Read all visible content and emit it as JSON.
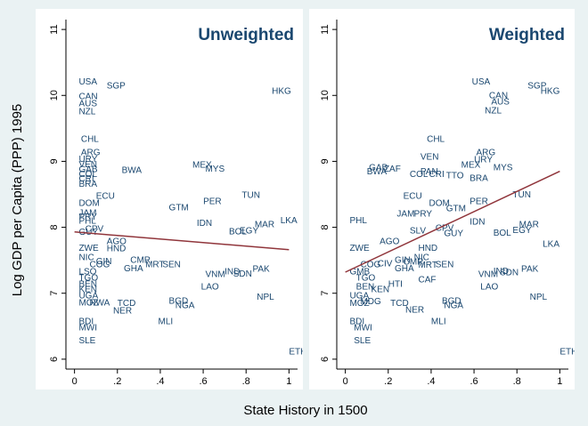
{
  "ylabel": "Log GDP per Capita (PPP) 1995",
  "xlabel": "State History in 1500",
  "chart_data": [
    {
      "type": "scatter",
      "title": "Unweighted",
      "color": "#1a476f",
      "fit_color": "#90353b",
      "xlim": [
        -0.04,
        1.04
      ],
      "ylim": [
        5.85,
        11.15
      ],
      "xticks": [
        0,
        {
          "value": 0.2,
          "label": ".2"
        },
        {
          "value": 0.4,
          "label": ".4"
        },
        {
          "value": 0.6,
          "label": ".6"
        },
        {
          "value": 0.8,
          "label": ".8"
        },
        1
      ],
      "yticks": [
        6,
        7,
        8,
        9,
        10,
        11
      ],
      "labels": [
        "USA",
        "SGP",
        "CAN",
        "AUS",
        "NZL",
        "HKG",
        "CHL",
        "ARG",
        "URY",
        "VEN",
        "GAB",
        "COL",
        "CRI",
        "BRA",
        "BWA",
        "MEX",
        "MYS",
        "ECU",
        "DOM",
        "TUN",
        "GTM",
        "PER",
        "JAM",
        "PRY",
        "PHL",
        "IDN",
        "CPV",
        "GUY",
        "BOL",
        "EGY",
        "MAR",
        "LKA",
        "ZWE",
        "AGO",
        "HND",
        "NIC",
        "GIN",
        "COG",
        "CMR",
        "GHA",
        "MRT",
        "SEN",
        "LSO",
        "TGO",
        "BEN",
        "KEN",
        "UGA",
        "VNM",
        "IND",
        "SDN",
        "PAK",
        "LAO",
        "NPL",
        "MOZ",
        "RWA",
        "TCD",
        "NER",
        "BGD",
        "NGA",
        "MLI",
        "BDI",
        "MWI",
        "ETH",
        "SLE"
      ],
      "x": [
        0.02,
        0.15,
        0.02,
        0.02,
        0.02,
        0.92,
        0.03,
        0.03,
        0.02,
        0.02,
        0.02,
        0.02,
        0.02,
        0.02,
        0.22,
        0.55,
        0.61,
        0.1,
        0.02,
        0.78,
        0.44,
        0.6,
        0.02,
        0.02,
        0.02,
        0.57,
        0.05,
        0.02,
        0.72,
        0.77,
        0.84,
        0.96,
        0.02,
        0.15,
        0.15,
        0.02,
        0.1,
        0.07,
        0.26,
        0.23,
        0.33,
        0.41,
        0.02,
        0.02,
        0.02,
        0.02,
        0.02,
        0.61,
        0.7,
        0.74,
        0.83,
        0.59,
        0.85,
        0.02,
        0.07,
        0.2,
        0.18,
        0.44,
        0.47,
        0.39,
        0.02,
        0.02,
        1.0,
        0.02
      ],
      "y": [
        10.2,
        10.14,
        9.98,
        9.87,
        9.75,
        10.06,
        9.33,
        9.13,
        9.03,
        8.95,
        8.87,
        8.8,
        8.73,
        8.65,
        8.86,
        8.94,
        8.88,
        8.47,
        8.36,
        8.48,
        8.29,
        8.39,
        8.21,
        8.15,
        8.09,
        8.06,
        7.97,
        7.92,
        7.93,
        7.94,
        8.04,
        8.1,
        7.68,
        7.78,
        7.67,
        7.54,
        7.48,
        7.43,
        7.5,
        7.37,
        7.43,
        7.43,
        7.32,
        7.23,
        7.13,
        7.05,
        6.96,
        7.28,
        7.32,
        7.29,
        7.36,
        7.09,
        6.94,
        6.85,
        6.85,
        6.84,
        6.73,
        6.88,
        6.81,
        6.57,
        6.57,
        6.47,
        6.11,
        6.28
      ],
      "fit": {
        "x": [
          0,
          1
        ],
        "y": [
          7.93,
          7.66
        ]
      }
    },
    {
      "type": "scatter",
      "title": "Weighted",
      "color": "#1a476f",
      "fit_color": "#90353b",
      "xlim": [
        -0.04,
        1.04
      ],
      "ylim": [
        5.85,
        11.15
      ],
      "xticks": [
        0,
        {
          "value": 0.2,
          "label": ".2"
        },
        {
          "value": 0.4,
          "label": ".4"
        },
        {
          "value": 0.6,
          "label": ".6"
        },
        {
          "value": 0.8,
          "label": ".8"
        },
        1
      ],
      "yticks": [
        6,
        7,
        8,
        9,
        10,
        11
      ],
      "labels": [
        "USA",
        "SGP",
        "HKG",
        "CAN",
        "AUS",
        "NZL",
        "CHL",
        "ARG",
        "URY",
        "VEN",
        "MEX",
        "MYS",
        "BRA",
        "TTO",
        "CRI",
        "COL",
        "PAN",
        "GAB",
        "BWA",
        "ZAF",
        "ECU",
        "DOM",
        "GTM",
        "PER",
        "TUN",
        "JAM",
        "PRY",
        "PHL",
        "IDN",
        "SLV",
        "CPV",
        "GUY",
        "BOL",
        "EGY",
        "MAR",
        "LKA",
        "ZWE",
        "AGO",
        "HND",
        "NIC",
        "GIN",
        "CIV",
        "COG",
        "CMR",
        "GHA",
        "MRT",
        "SEN",
        "GMB",
        "TGO",
        "CAF",
        "HTI",
        "BEN",
        "KEN",
        "UGA",
        "VNM",
        "IND",
        "SDN",
        "PAK",
        "LAO",
        "NPL",
        "MOZ",
        "MDG",
        "TCD",
        "NER",
        "BGD",
        "NGA",
        "MLI",
        "BDI",
        "MWI",
        "ETH",
        "SLE"
      ],
      "x": [
        0.59,
        0.85,
        0.91,
        0.67,
        0.68,
        0.65,
        0.38,
        0.61,
        0.6,
        0.35,
        0.54,
        0.69,
        0.58,
        0.47,
        0.39,
        0.3,
        0.35,
        0.11,
        0.1,
        0.18,
        0.27,
        0.39,
        0.47,
        0.58,
        0.78,
        0.24,
        0.32,
        0.02,
        0.58,
        0.3,
        0.42,
        0.46,
        0.69,
        0.78,
        0.81,
        0.92,
        0.02,
        0.16,
        0.34,
        0.32,
        0.23,
        0.15,
        0.07,
        0.27,
        0.23,
        0.34,
        0.42,
        0.02,
        0.05,
        0.34,
        0.2,
        0.05,
        0.12,
        0.02,
        0.62,
        0.69,
        0.72,
        0.82,
        0.63,
        0.86,
        0.02,
        0.07,
        0.21,
        0.28,
        0.45,
        0.46,
        0.4,
        0.02,
        0.04,
        1.0,
        0.04
      ],
      "y": [
        10.2,
        10.14,
        10.06,
        9.99,
        9.9,
        9.76,
        9.33,
        9.13,
        9.02,
        9.06,
        8.94,
        8.9,
        8.74,
        8.78,
        8.8,
        8.8,
        8.84,
        8.9,
        8.84,
        8.88,
        8.47,
        8.36,
        8.28,
        8.39,
        8.49,
        8.2,
        8.2,
        8.1,
        8.08,
        7.94,
        7.98,
        7.9,
        7.91,
        7.95,
        8.04,
        7.74,
        7.68,
        7.78,
        7.68,
        7.54,
        7.5,
        7.44,
        7.43,
        7.47,
        7.37,
        7.42,
        7.43,
        7.32,
        7.23,
        7.2,
        7.13,
        7.09,
        7.05,
        6.96,
        7.28,
        7.33,
        7.31,
        7.36,
        7.09,
        6.94,
        6.84,
        6.87,
        6.84,
        6.74,
        6.88,
        6.81,
        6.57,
        6.57,
        6.47,
        6.11,
        6.28
      ],
      "fit": {
        "x": [
          0,
          1
        ],
        "y": [
          7.32,
          8.85
        ]
      }
    }
  ]
}
